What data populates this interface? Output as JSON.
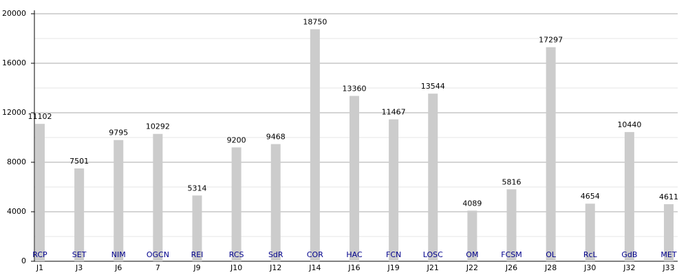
{
  "chart_data": {
    "type": "bar",
    "categories": [
      "J1",
      "J3",
      "J6",
      "7",
      "J9",
      "J10",
      "J12",
      "J14",
      "J16",
      "J19",
      "J21",
      "J22",
      "J26",
      "J28",
      "J30",
      "J32",
      "J33"
    ],
    "bar_labels": [
      "RCP",
      "SET",
      "NIM",
      "OGCN",
      "REI",
      "RCS",
      "SdR",
      "COR",
      "HAC",
      "FCN",
      "LOSC",
      "OM",
      "FCSM",
      "OL",
      "RcL",
      "GdB",
      "MET"
    ],
    "values": [
      11102,
      7501,
      9795,
      10292,
      5314,
      9200,
      9468,
      18750,
      13360,
      11467,
      13544,
      4089,
      5816,
      17297,
      4654,
      10440,
      4611
    ],
    "color": "#cccccc",
    "bar_label_color": "#00008b",
    "ylim": [
      0,
      20000
    ],
    "yticks": [
      0,
      4000,
      8000,
      12000,
      16000,
      20000
    ],
    "minor_yticks": [
      2000,
      6000,
      10000,
      14000,
      18000
    ],
    "grid": true
  }
}
